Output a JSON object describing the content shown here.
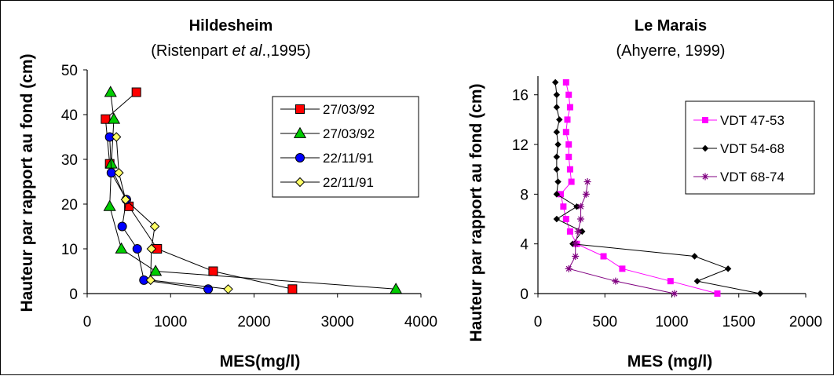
{
  "colors": {
    "square_red": "#ff0000",
    "triangle_green": "#00cc00",
    "circle_blue": "#0000ff",
    "diamond_yellow": "#ffff66",
    "magenta": "#ff00ff",
    "black": "#000000",
    "purple": "#800080"
  },
  "chart_data": [
    {
      "type": "line",
      "title": "Hildesheim",
      "subtitle_parts": [
        "(Ristenpart ",
        "et al",
        ".,1995)"
      ],
      "xlabel": "MES(mg/l)",
      "ylabel": "Hauteur par rapport au fond (cm)",
      "xlim": [
        0,
        4000
      ],
      "ylim": [
        0,
        50
      ],
      "x_ticks": [
        0,
        1000,
        2000,
        3000,
        4000
      ],
      "y_ticks": [
        0,
        10,
        20,
        30,
        40,
        50
      ],
      "grid": false,
      "legend_position": "top-right",
      "series": [
        {
          "name": "27/03/92",
          "marker": "square",
          "points": [
            [
              2460,
              1
            ],
            [
              1510,
              5
            ],
            [
              840,
              10
            ],
            [
              500,
              19.5
            ],
            [
              270,
              29
            ],
            [
              220,
              39
            ],
            [
              590,
              45
            ]
          ]
        },
        {
          "name": "27/03/92",
          "marker": "triangle",
          "points": [
            [
              3700,
              1
            ],
            [
              820,
              5
            ],
            [
              410,
              10
            ],
            [
              270,
              19.5
            ],
            [
              290,
              29
            ],
            [
              320,
              39
            ],
            [
              280,
              45
            ]
          ]
        },
        {
          "name": "22/11/91",
          "marker": "circle",
          "points": [
            [
              1450,
              1
            ],
            [
              680,
              3
            ],
            [
              600,
              10
            ],
            [
              420,
              15
            ],
            [
              470,
              21
            ],
            [
              290,
              27
            ],
            [
              270,
              35
            ]
          ]
        },
        {
          "name": "22/11/91",
          "marker": "diamond",
          "points": [
            [
              1690,
              1
            ],
            [
              760,
              3
            ],
            [
              770,
              10
            ],
            [
              810,
              15
            ],
            [
              460,
              21
            ],
            [
              380,
              27
            ],
            [
              350,
              35
            ]
          ]
        }
      ]
    },
    {
      "type": "line",
      "title": "Le Marais",
      "subtitle": "(Ahyerre, 1999)",
      "xlabel": "MES (mg/l)",
      "ylabel": "Hauteur par rapport au fond (cm)",
      "xlim": [
        0,
        2000
      ],
      "ylim": [
        0,
        17.5
      ],
      "x_ticks": [
        0,
        500,
        1000,
        1500,
        2000
      ],
      "y_ticks": [
        0,
        4,
        8,
        12,
        16
      ],
      "grid": false,
      "legend_position": "top-right",
      "series": [
        {
          "name": "VDT 47-53",
          "marker": "square",
          "points": [
            [
              1340,
              0
            ],
            [
              990,
              1
            ],
            [
              630,
              2
            ],
            [
              490,
              3
            ],
            [
              290,
              4
            ],
            [
              240,
              5
            ],
            [
              210,
              6
            ],
            [
              190,
              7
            ],
            [
              170,
              8
            ],
            [
              250,
              9
            ],
            [
              240,
              10
            ],
            [
              230,
              11
            ],
            [
              230,
              12
            ],
            [
              210,
              13
            ],
            [
              220,
              14
            ],
            [
              240,
              15
            ],
            [
              230,
              16
            ],
            [
              210,
              17
            ]
          ]
        },
        {
          "name": "VDT 54-68",
          "marker": "diamond",
          "points": [
            [
              1660,
              0
            ],
            [
              1190,
              1
            ],
            [
              1420,
              2
            ],
            [
              1170,
              3
            ],
            [
              260,
              4
            ],
            [
              330,
              5
            ],
            [
              140,
              6
            ],
            [
              290,
              7
            ],
            [
              140,
              8
            ],
            [
              150,
              9
            ],
            [
              140,
              10
            ],
            [
              140,
              11
            ],
            [
              150,
              12
            ],
            [
              140,
              13
            ],
            [
              160,
              14
            ],
            [
              140,
              15
            ],
            [
              140,
              16
            ],
            [
              130,
              17
            ]
          ]
        },
        {
          "name": "VDT 68-74",
          "marker": "star",
          "points": [
            [
              1020,
              0
            ],
            [
              580,
              1
            ],
            [
              230,
              2
            ],
            [
              280,
              3
            ],
            [
              280,
              4
            ],
            [
              300,
              5
            ],
            [
              320,
              6
            ],
            [
              320,
              7
            ],
            [
              360,
              8
            ],
            [
              370,
              9
            ]
          ]
        }
      ]
    }
  ]
}
